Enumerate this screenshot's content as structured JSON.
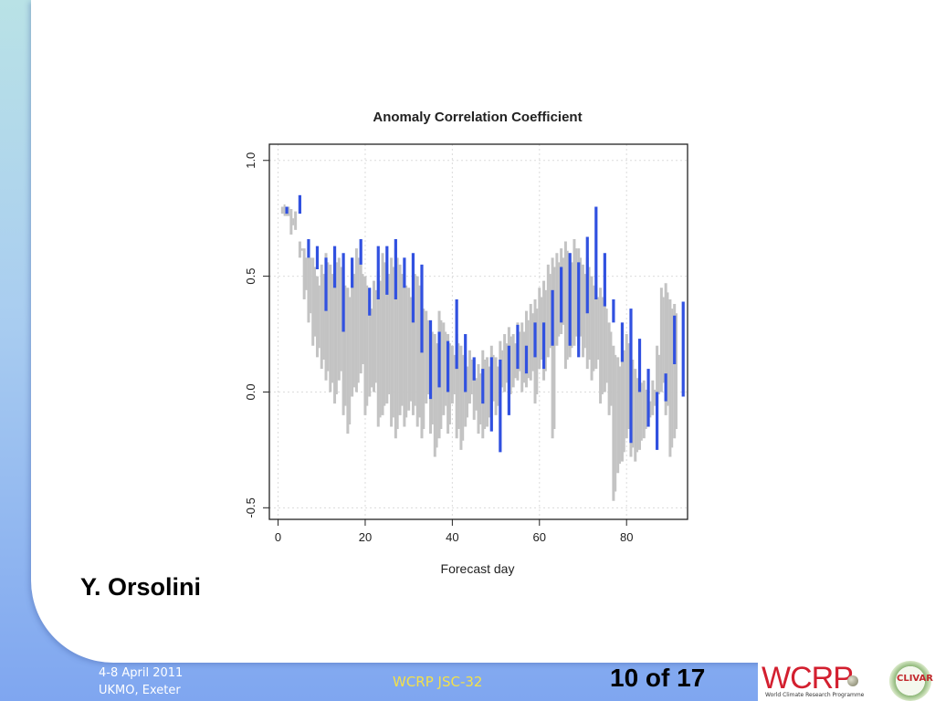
{
  "author": "Y. Orsolini",
  "footer": {
    "date": "4-8 April 2011",
    "location": "UKMO, Exeter",
    "meeting": "WCRP JSC-32",
    "page": "10 of 17"
  },
  "logos": {
    "wcrp": "WCRP",
    "wcrp_sub": "World Climate Research Programme",
    "clivar": "CLIVAR"
  },
  "colors": {
    "ensemble": "#c3c3c3",
    "mean": "#3151e0",
    "footer_text": "#f3e04a"
  },
  "chart_data": {
    "type": "range-bar",
    "title": "Anomaly Correlation Coefficient",
    "xlabel": "Forecast day",
    "ylabel": "",
    "xlim": [
      -2,
      94
    ],
    "ylim": [
      -0.55,
      1.07
    ],
    "xticks": [
      "0",
      "20",
      "40",
      "60",
      "80"
    ],
    "yticks": [
      "-0.5",
      "0.0",
      "0.5",
      "1.0"
    ],
    "grid": true,
    "series": [
      {
        "role": "grey ensemble ranges",
        "ranges": [
          [
            1,
            0.77,
            0.8
          ],
          [
            2,
            0.76,
            0.8
          ],
          [
            3,
            0.68,
            0.79
          ],
          [
            4,
            0.7,
            0.78
          ],
          [
            5,
            0.58,
            0.65
          ],
          [
            6,
            0.4,
            0.62
          ],
          [
            7,
            0.3,
            0.62
          ],
          [
            8,
            0.2,
            0.58
          ],
          [
            9,
            0.15,
            0.5
          ],
          [
            10,
            0.1,
            0.55
          ],
          [
            11,
            0.05,
            0.6
          ],
          [
            12,
            0.0,
            0.55
          ],
          [
            13,
            -0.05,
            0.6
          ],
          [
            14,
            0.05,
            0.58
          ],
          [
            15,
            -0.1,
            0.5
          ],
          [
            16,
            -0.18,
            0.45
          ],
          [
            17,
            -0.02,
            0.55
          ],
          [
            18,
            0.0,
            0.62
          ],
          [
            19,
            0.08,
            0.55
          ],
          [
            20,
            -0.1,
            0.5
          ],
          [
            21,
            -0.02,
            0.4
          ],
          [
            22,
            0.0,
            0.48
          ],
          [
            23,
            -0.15,
            0.52
          ],
          [
            24,
            -0.1,
            0.6
          ],
          [
            25,
            -0.05,
            0.55
          ],
          [
            26,
            -0.15,
            0.58
          ],
          [
            27,
            -0.2,
            0.62
          ],
          [
            28,
            -0.1,
            0.55
          ],
          [
            29,
            -0.15,
            0.5
          ],
          [
            30,
            -0.08,
            0.45
          ],
          [
            31,
            -0.1,
            0.55
          ],
          [
            32,
            -0.15,
            0.5
          ],
          [
            33,
            -0.2,
            0.4
          ],
          [
            34,
            -0.05,
            0.35
          ],
          [
            35,
            -0.18,
            0.3
          ],
          [
            36,
            -0.28,
            0.25
          ],
          [
            37,
            -0.2,
            0.35
          ],
          [
            38,
            -0.1,
            0.3
          ],
          [
            39,
            -0.18,
            0.25
          ],
          [
            40,
            -0.05,
            0.2
          ],
          [
            41,
            -0.2,
            0.25
          ],
          [
            42,
            -0.25,
            0.2
          ],
          [
            43,
            -0.15,
            0.15
          ],
          [
            44,
            -0.05,
            0.18
          ],
          [
            45,
            -0.12,
            0.1
          ],
          [
            46,
            -0.18,
            0.12
          ],
          [
            47,
            -0.2,
            0.18
          ],
          [
            48,
            -0.15,
            0.15
          ],
          [
            49,
            -0.08,
            0.2
          ],
          [
            50,
            -0.1,
            0.15
          ],
          [
            51,
            -0.02,
            0.22
          ],
          [
            52,
            0.0,
            0.25
          ],
          [
            53,
            -0.05,
            0.28
          ],
          [
            54,
            0.02,
            0.25
          ],
          [
            55,
            0.05,
            0.3
          ],
          [
            56,
            0.0,
            0.3
          ],
          [
            57,
            0.02,
            0.35
          ],
          [
            58,
            0.05,
            0.38
          ],
          [
            59,
            -0.05,
            0.4
          ],
          [
            60,
            0.1,
            0.45
          ],
          [
            61,
            0.05,
            0.48
          ],
          [
            62,
            0.15,
            0.55
          ],
          [
            63,
            -0.2,
            0.58
          ],
          [
            64,
            0.2,
            0.6
          ],
          [
            65,
            0.25,
            0.62
          ],
          [
            66,
            0.1,
            0.65
          ],
          [
            67,
            0.15,
            0.6
          ],
          [
            68,
            0.2,
            0.66
          ],
          [
            69,
            0.2,
            0.62
          ],
          [
            70,
            0.15,
            0.55
          ],
          [
            71,
            0.1,
            0.58
          ],
          [
            72,
            0.05,
            0.5
          ],
          [
            73,
            0.1,
            0.45
          ],
          [
            74,
            -0.05,
            0.45
          ],
          [
            75,
            0.0,
            0.4
          ],
          [
            76,
            -0.1,
            0.3
          ],
          [
            77,
            -0.47,
            0.2
          ],
          [
            78,
            -0.35,
            0.15
          ],
          [
            79,
            -0.3,
            0.22
          ],
          [
            80,
            -0.2,
            0.25
          ],
          [
            81,
            -0.28,
            0.18
          ],
          [
            82,
            -0.3,
            0.1
          ],
          [
            83,
            -0.25,
            0.08
          ],
          [
            84,
            -0.2,
            0.05
          ],
          [
            85,
            -0.15,
            0.0
          ],
          [
            86,
            -0.1,
            0.05
          ],
          [
            87,
            -0.05,
            0.2
          ],
          [
            88,
            0.0,
            0.45
          ],
          [
            89,
            -0.1,
            0.47
          ],
          [
            90,
            -0.28,
            0.4
          ],
          [
            91,
            -0.2,
            0.38
          ]
        ]
      },
      {
        "role": "blue ensemble-mean ranges",
        "ranges": [
          [
            2,
            0.77,
            0.8
          ],
          [
            5,
            0.77,
            0.85
          ],
          [
            7,
            0.58,
            0.66
          ],
          [
            9,
            0.53,
            0.63
          ],
          [
            11,
            0.35,
            0.58
          ],
          [
            13,
            0.45,
            0.63
          ],
          [
            15,
            0.26,
            0.6
          ],
          [
            17,
            0.45,
            0.58
          ],
          [
            19,
            0.55,
            0.66
          ],
          [
            21,
            0.33,
            0.45
          ],
          [
            23,
            0.4,
            0.63
          ],
          [
            25,
            0.42,
            0.63
          ],
          [
            27,
            0.4,
            0.66
          ],
          [
            29,
            0.45,
            0.58
          ],
          [
            31,
            0.3,
            0.6
          ],
          [
            33,
            0.17,
            0.55
          ],
          [
            35,
            -0.03,
            0.31
          ],
          [
            37,
            0.02,
            0.26
          ],
          [
            39,
            0.0,
            0.22
          ],
          [
            41,
            0.1,
            0.4
          ],
          [
            43,
            0.0,
            0.25
          ],
          [
            45,
            0.05,
            0.15
          ],
          [
            47,
            -0.05,
            0.1
          ],
          [
            49,
            -0.17,
            0.15
          ],
          [
            51,
            -0.26,
            0.14
          ],
          [
            53,
            -0.1,
            0.2
          ],
          [
            55,
            0.1,
            0.29
          ],
          [
            57,
            0.08,
            0.2
          ],
          [
            59,
            0.15,
            0.3
          ],
          [
            61,
            0.1,
            0.3
          ],
          [
            63,
            0.2,
            0.44
          ],
          [
            65,
            0.3,
            0.54
          ],
          [
            67,
            0.2,
            0.6
          ],
          [
            69,
            0.15,
            0.56
          ],
          [
            71,
            0.34,
            0.67
          ],
          [
            73,
            0.4,
            0.8
          ],
          [
            75,
            0.37,
            0.6
          ],
          [
            77,
            0.3,
            0.4
          ],
          [
            79,
            0.13,
            0.3
          ],
          [
            81,
            -0.22,
            0.36
          ],
          [
            83,
            0.0,
            0.23
          ],
          [
            85,
            -0.15,
            0.1
          ],
          [
            87,
            -0.25,
            0.0
          ],
          [
            89,
            -0.04,
            0.08
          ],
          [
            91,
            0.12,
            0.33
          ],
          [
            93,
            -0.02,
            0.39
          ]
        ]
      }
    ]
  }
}
